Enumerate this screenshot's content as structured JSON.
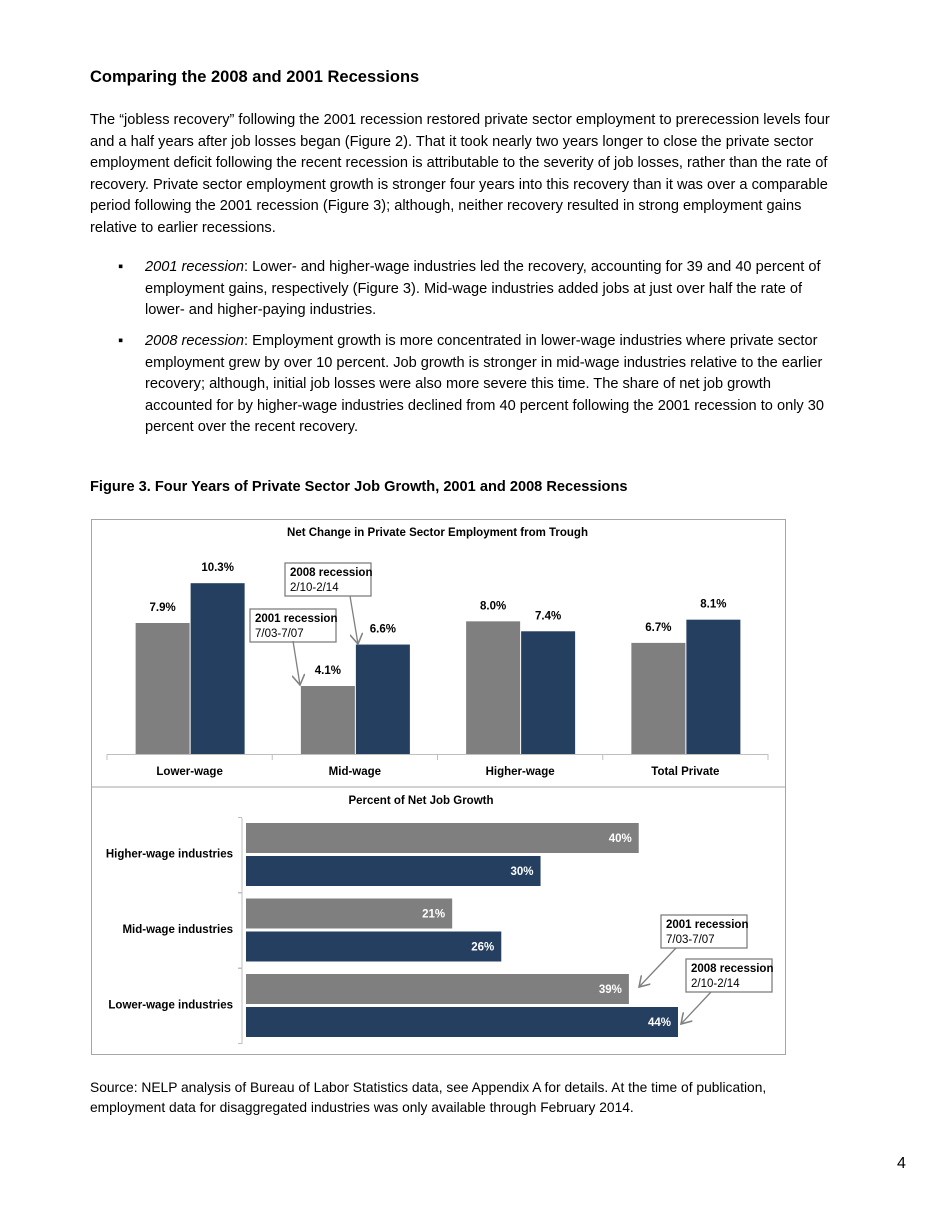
{
  "heading": "Comparing the 2008 and 2001 Recessions",
  "paragraph": "The “jobless recovery” following the 2001 recession restored private sector employment to prerecession levels four and a half years after job losses began (Figure 2). That it took nearly two years longer to close the private sector employment deficit following the recent recession is attributable to the severity of job losses, rather than the rate of recovery. Private sector employment growth is stronger four years into this recovery than it was over a comparable period following the 2001 recession (Figure 3); although, neither recovery resulted in strong employment gains relative to earlier recessions.",
  "bullets": [
    {
      "lead": "2001 recession",
      "text": ": Lower- and higher-wage industries led the recovery, accounting for 39 and 40 percent of employment gains, respectively (Figure 3). Mid-wage industries added jobs at just over half the rate of lower- and higher-paying industries."
    },
    {
      "lead": "2008 recession",
      "text": ": Employment growth is more concentrated in lower-wage industries where private sector employment grew by over 10 percent. Job growth is stronger in mid-wage industries relative to the earlier recovery; although, initial job losses were also more severe this time. The share of net job growth accounted for by higher-wage industries declined from 40 percent following the 2001 recession to only 30 percent over the recent recovery."
    }
  ],
  "figure_title": "Figure 3. Four Years of Private Sector Job Growth, 2001 and 2008 Recessions",
  "chart_data": [
    {
      "type": "bar",
      "title": "Net Change in Private Sector Employment from Trough",
      "categories": [
        "Lower-wage",
        "Mid-wage",
        "Higher-wage",
        "Total Private"
      ],
      "ylim": [
        0,
        12
      ],
      "series": [
        {
          "name": "2001 recession",
          "period": "7/03-7/07",
          "color": "#7f7f7f",
          "values": [
            7.9,
            4.1,
            8.0,
            6.7
          ],
          "value_labels": [
            "7.9%",
            "4.1%",
            "8.0%",
            "6.7%"
          ]
        },
        {
          "name": "2008 recession",
          "period": "2/10-2/14",
          "color": "#243f60",
          "values": [
            10.3,
            6.6,
            7.4,
            8.1
          ],
          "value_labels": [
            "10.3%",
            "6.6%",
            "7.4%",
            "8.1%"
          ]
        }
      ]
    },
    {
      "type": "barh",
      "title": "Percent of Net Job Growth",
      "categories": [
        "Higher-wage industries",
        "Mid-wage industries",
        "Lower-wage industries"
      ],
      "xlim": [
        0,
        55
      ],
      "series": [
        {
          "name": "2001 recession",
          "period": "7/03-7/07",
          "color": "#7f7f7f",
          "values": [
            40,
            21,
            39
          ],
          "value_labels": [
            "40%",
            "21%",
            "39%"
          ]
        },
        {
          "name": "2008 recession",
          "period": "2/10-2/14",
          "color": "#243f60",
          "values": [
            30,
            26,
            44
          ],
          "value_labels": [
            "30%",
            "26%",
            "44%"
          ]
        }
      ]
    }
  ],
  "source": "Source: NELP analysis of Bureau of Labor Statistics data, see Appendix A for details. At the time of publication, employment data for disaggregated industries was only available through February 2014.",
  "page_number": "4"
}
